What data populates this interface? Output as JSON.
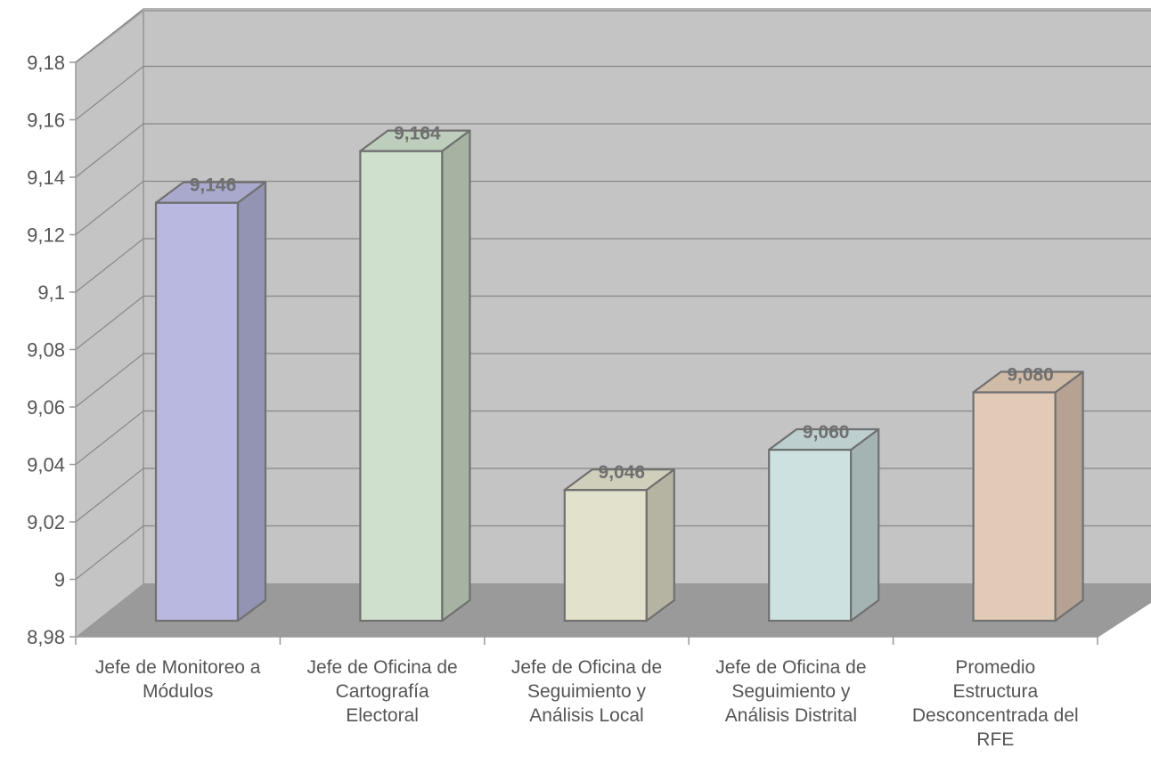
{
  "chart_data": {
    "type": "bar",
    "style": "3d-column",
    "title": "",
    "xlabel": "",
    "ylabel": "",
    "ylim": [
      8.98,
      9.18
    ],
    "yticks": [
      "8,98",
      "9",
      "9,02",
      "9,04",
      "9,06",
      "9,08",
      "9,1",
      "9,12",
      "9,14",
      "9,16",
      "9,18"
    ],
    "grid": true,
    "legend": "none",
    "categories": [
      [
        "Jefe de Monitoreo a",
        "Módulos"
      ],
      [
        "Jefe de Oficina de",
        "Cartografía",
        "Electoral"
      ],
      [
        "Jefe de Oficina de",
        "Seguimiento y",
        "Análisis Local"
      ],
      [
        "Jefe de Oficina de",
        "Seguimiento y",
        "Análisis Distrital"
      ],
      [
        "Promedio",
        "Estructura",
        "Desconcentrada del",
        "RFE"
      ]
    ],
    "values": [
      9.146,
      9.164,
      9.046,
      9.06,
      9.08
    ],
    "data_labels": [
      "9,146",
      "9,164",
      "9,046",
      "9,060",
      "9,080"
    ],
    "colors": {
      "bars": [
        "#b8b8e0",
        "#cfe0cc",
        "#e2e1cb",
        "#cde1e0",
        "#e2cbb6"
      ],
      "back_wall": "#c4c4c4",
      "side_wall": "#c4c4c4",
      "floor": "#9a9a9a",
      "gridline": "#888888",
      "edge": "#707070"
    }
  }
}
